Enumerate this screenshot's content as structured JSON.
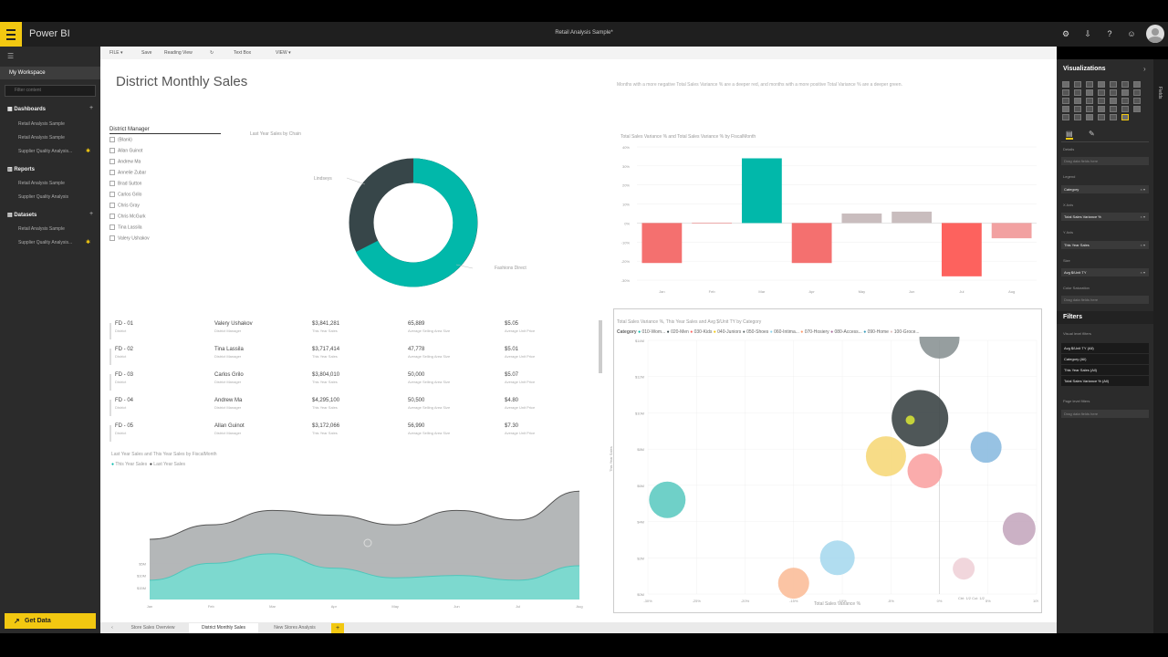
{
  "app": {
    "name": "Power BI",
    "report_title": "Retail Analysis Sample*"
  },
  "top_icons": [
    "settings-icon",
    "download-icon",
    "help-icon",
    "smiley-icon"
  ],
  "nav": {
    "workspace": "My Workspace",
    "search_placeholder": "Filter content",
    "dashboards_label": "Dashboards",
    "dashboards": [
      "Retail Analysis Sample",
      "Retail Analysis Sample",
      "Supplier Quality Analysis..."
    ],
    "reports_label": "Reports",
    "reports": [
      "Retail Analysis Sample",
      "Supplier Quality Analysis"
    ],
    "datasets_label": "Datasets",
    "datasets": [
      "Retail Analysis Sample",
      "Supplier Quality Analysis..."
    ],
    "get_data": "Get Data"
  },
  "toolbar": {
    "file": "FILE ▾",
    "save": "Save",
    "reading": "Reading View",
    "textbox": "Text Box",
    "view": "VIEW ▾"
  },
  "page": {
    "title": "District Monthly Sales",
    "note": "Months with a more negative Total Sales Variance % are a deeper red, and months with a more positive Total Variance % are a deeper green."
  },
  "slicer": {
    "header": "District Manager",
    "items": [
      "(Blank)",
      "Allan Guinot",
      "Andrew Ma",
      "Annelie Zubar",
      "Brad Sutton",
      "Carlos Grilo",
      "Chris Gray",
      "Chris McGurk",
      "Tina Lassila",
      "Valery Ushakov"
    ]
  },
  "donut": {
    "title": "Last Year Sales by Chain",
    "label_a": "Lindseys",
    "label_b": "Fashions Direct"
  },
  "cards": [
    {
      "district": "FD - 01",
      "manager": "Valery Ushakov",
      "ty": "$3,841,281",
      "area": "65,889",
      "unit": "$5.05"
    },
    {
      "district": "FD - 02",
      "manager": "Tina Lassila",
      "ty": "$3,717,414",
      "area": "47,778",
      "unit": "$5.01"
    },
    {
      "district": "FD - 03",
      "manager": "Carlos Grilo",
      "ty": "$3,804,010",
      "area": "50,000",
      "unit": "$5.07"
    },
    {
      "district": "FD - 04",
      "manager": "Andrew Ma",
      "ty": "$4,295,100",
      "area": "50,500",
      "unit": "$4.80"
    },
    {
      "district": "FD - 05",
      "manager": "Allan Guinot",
      "ty": "$3,172,066",
      "area": "56,990",
      "unit": "$7.30"
    }
  ],
  "card_labels": {
    "district": "District",
    "manager": "District Manager",
    "ty": "This Year Sales",
    "area": "Average Selling Area Size",
    "unit": "Average Unit Price"
  },
  "area_chart": {
    "title": "Last Year Sales and This Year Sales by FiscalMonth",
    "legend_ty": "This Year Sales",
    "legend_ly": "Last Year Sales"
  },
  "bar_chart": {
    "title": "Total Sales Variance % and Total Sales Variance % by FiscalMonth"
  },
  "scatter": {
    "title": "Total Sales Variance %, This Year Sales and Avg $/Unit TY by Category",
    "legend_label": "Category",
    "legend": [
      "010-Wom...",
      "020-Men",
      "030-Kids",
      "040-Juniors",
      "050-Shoes",
      "060-Intima...",
      "070-Hosiery",
      "080-Access...",
      "090-Home",
      "100-Groce..."
    ],
    "xlabel": "Total Sales Variance %",
    "ylabel": "This Year Sales",
    "corner": "Ctrl: 1/2 Col: 1/2"
  },
  "chart_data": [
    {
      "type": "area",
      "title": "Last Year Sales and This Year Sales by FiscalMonth",
      "categories": [
        "Jan",
        "Feb",
        "Mar",
        "Apr",
        "May",
        "Jun",
        "Jul",
        "Aug"
      ],
      "series": [
        {
          "name": "This Year Sales",
          "values": [
            8,
            15,
            19,
            13,
            9,
            10,
            8,
            14
          ]
        },
        {
          "name": "Last Year Sales",
          "values": [
            25,
            31,
            37,
            35,
            31,
            37,
            33,
            45
          ]
        }
      ],
      "yticks": [
        "$5M",
        "$10M",
        "$15M"
      ],
      "ylim": [
        0,
        50
      ]
    },
    {
      "type": "bar",
      "title": "Total Sales Variance % and Total Sales Variance % by FiscalMonth",
      "categories": [
        "Jan",
        "Feb",
        "Mar",
        "Apr",
        "May",
        "Jun",
        "Jul",
        "Aug"
      ],
      "values": [
        -21,
        0,
        34,
        -21,
        5,
        6,
        -28,
        -8
      ],
      "yticks": [
        "40%",
        "30%",
        "20%",
        "10%",
        "0%",
        "-10%",
        "-20%",
        "-30%"
      ],
      "ylim": [
        -30,
        40
      ],
      "colors": [
        "#f4706f",
        "#f4706f",
        "#01b8aa",
        "#f4706f",
        "#c9bdbe",
        "#c9bdbe",
        "#fd625e",
        "#f2a1a1"
      ]
    },
    {
      "type": "scatter",
      "title": "Total Sales Variance %, This Year Sales and Avg $/Unit TY by Category",
      "xticks": [
        "-30%",
        "-25%",
        "-20%",
        "-15%",
        "-10%",
        "-5%",
        "0%",
        "5%",
        "10%"
      ],
      "yticks": [
        "$14M",
        "$12M",
        "$10M",
        "$8M",
        "$6M",
        "$4M",
        "$2M",
        "$0M"
      ],
      "xlim": [
        -30,
        10
      ],
      "ylim": [
        0,
        14
      ],
      "points": [
        {
          "x": -28,
          "y": 5.2,
          "r": 20,
          "color": "#5fcbc2"
        },
        {
          "x": -15,
          "y": 0.6,
          "r": 17,
          "color": "#fbbe9a"
        },
        {
          "x": -10.5,
          "y": 2.0,
          "r": 19,
          "color": "#a9d9ee"
        },
        {
          "x": -5.5,
          "y": 7.6,
          "r": 22,
          "color": "#f6d87a"
        },
        {
          "x": -2,
          "y": 9.7,
          "r": 31,
          "color": "#3c4546"
        },
        {
          "x": 0,
          "y": 14.1,
          "r": 22,
          "color": "#8b9495"
        },
        {
          "x": -1.5,
          "y": 6.8,
          "r": 19,
          "color": "#f9a3a3"
        },
        {
          "x": 4.8,
          "y": 8.1,
          "r": 17,
          "color": "#8cbbe0"
        },
        {
          "x": 2.5,
          "y": 1.4,
          "r": 12,
          "color": "#f0d2d8"
        },
        {
          "x": 8.2,
          "y": 3.6,
          "r": 18,
          "color": "#c5a8bf"
        }
      ]
    }
  ],
  "rightpane": {
    "visualizations": "Visualizations",
    "details": "Details",
    "drag_here": "Drag data fields here",
    "legend": "Legend",
    "legend_val": "Category",
    "xaxis": "X Axis",
    "xaxis_val": "Total Sales Variance %",
    "yaxis": "Y Axis",
    "yaxis_val": "This Year Sales",
    "size": "Size",
    "size_val": "Avg $/Unit TY",
    "color_sat": "Color Saturation",
    "filters": "Filters",
    "visual_filters": "Visual level filters",
    "filter_items": [
      "Avg $/Unit TY (All)",
      "Category (All)",
      "This Year Sales (All)",
      "Total Sales Variance % (All)"
    ],
    "page_filters": "Page level filters",
    "fields": "Fields"
  },
  "pages": [
    "Store Sales Overview",
    "District Monthly Sales",
    "New Stores Analysis"
  ]
}
